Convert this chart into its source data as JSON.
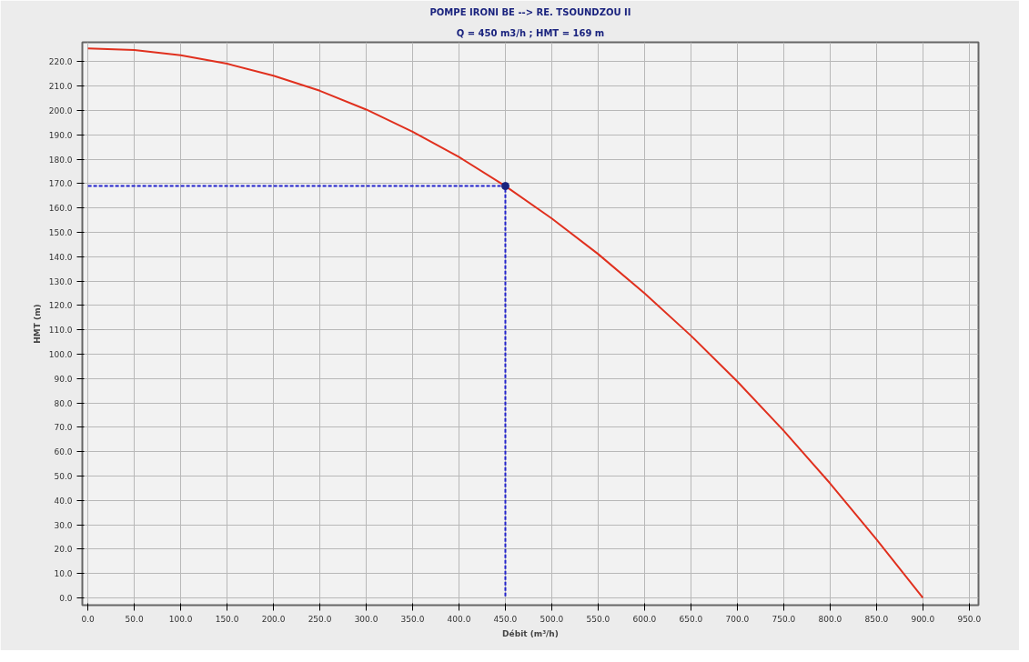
{
  "chart_data": {
    "type": "line",
    "title": "POMPE IRONI BE --> RE. TSOUNDZOU II",
    "subtitle": "Q = 450 m3/h ; HMT = 169 m",
    "xlabel": "Débit (m³/h)",
    "ylabel": "HMT (m)",
    "xlim": [
      -6,
      960
    ],
    "ylim": [
      -3,
      228
    ],
    "xticks": [
      {
        "value": 0,
        "label": "0.0"
      },
      {
        "value": 50,
        "label": "50.0"
      },
      {
        "value": 100,
        "label": "100.0"
      },
      {
        "value": 150,
        "label": "150.0"
      },
      {
        "value": 200,
        "label": "200.0"
      },
      {
        "value": 250,
        "label": "250.0"
      },
      {
        "value": 300,
        "label": "300.0"
      },
      {
        "value": 350,
        "label": "350.0"
      },
      {
        "value": 400,
        "label": "400.0"
      },
      {
        "value": 450,
        "label": "450.0"
      },
      {
        "value": 500,
        "label": "500.0"
      },
      {
        "value": 550,
        "label": "550.0"
      },
      {
        "value": 600,
        "label": "600.0"
      },
      {
        "value": 650,
        "label": "650.0"
      },
      {
        "value": 700,
        "label": "700.0"
      },
      {
        "value": 750,
        "label": "750.0"
      },
      {
        "value": 800,
        "label": "800.0"
      },
      {
        "value": 850,
        "label": "850.0"
      },
      {
        "value": 900,
        "label": "900.0"
      },
      {
        "value": 950,
        "label": "950.0"
      }
    ],
    "yticks": [
      {
        "value": 0,
        "label": "0.0"
      },
      {
        "value": 10,
        "label": "10.0"
      },
      {
        "value": 20,
        "label": "20.0"
      },
      {
        "value": 30,
        "label": "30.0"
      },
      {
        "value": 40,
        "label": "40.0"
      },
      {
        "value": 50,
        "label": "50.0"
      },
      {
        "value": 60,
        "label": "60.0"
      },
      {
        "value": 70,
        "label": "70.0"
      },
      {
        "value": 80,
        "label": "80.0"
      },
      {
        "value": 90,
        "label": "90.0"
      },
      {
        "value": 100,
        "label": "100.0"
      },
      {
        "value": 110,
        "label": "110.0"
      },
      {
        "value": 120,
        "label": "120.0"
      },
      {
        "value": 130,
        "label": "130.0"
      },
      {
        "value": 140,
        "label": "140.0"
      },
      {
        "value": 150,
        "label": "150.0"
      },
      {
        "value": 160,
        "label": "160.0"
      },
      {
        "value": 170,
        "label": "170.0"
      },
      {
        "value": 180,
        "label": "180.0"
      },
      {
        "value": 190,
        "label": "190.0"
      },
      {
        "value": 200,
        "label": "200.0"
      },
      {
        "value": 210,
        "label": "210.0"
      },
      {
        "value": 220,
        "label": "220.0"
      }
    ],
    "grid": true,
    "series": [
      {
        "color": "#e0301e",
        "line_style": "solid",
        "marker": "none",
        "x": [
          0,
          50,
          100,
          150,
          200,
          250,
          300,
          350,
          400,
          450,
          500,
          550,
          600,
          650,
          700,
          750,
          800,
          850,
          900
        ],
        "values": [
          225.5,
          224.8,
          222.7,
          219.2,
          214.3,
          208.1,
          200.4,
          191.3,
          180.9,
          169,
          155.7,
          141.1,
          125,
          107.6,
          88.8,
          68.6,
          47,
          24,
          0
        ]
      },
      {
        "type": "line",
        "color": "#2222cc",
        "line_style": "dashed",
        "marker": "none",
        "x": [
          0,
          450,
          450
        ],
        "values": [
          169,
          169,
          0
        ]
      },
      {
        "type": "scatter",
        "color": "#1a237e",
        "marker": "circle",
        "x": [
          450
        ],
        "values": [
          169
        ]
      }
    ]
  }
}
